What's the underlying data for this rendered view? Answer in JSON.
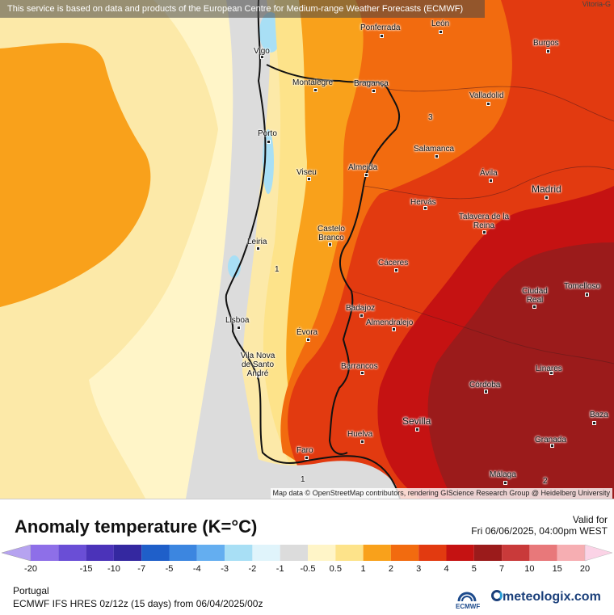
{
  "map": {
    "banner": "This service is based on data and products of the European Centre for Medium-range Weather Forecasts (ECMWF)",
    "attribution": "Map data © OpenStreetMap contributors, rendering GIScience Research Group @ Heidelberg University",
    "corner_label": "Vitoria-G",
    "contour_labels": [
      "1",
      "1",
      "3",
      "2"
    ],
    "cities": [
      "Ponferrada",
      "León",
      "Burgos",
      "Vigo",
      "Montalegre",
      "Bragança",
      "Valladolid",
      "Porto",
      "Salamanca",
      "Viseu",
      "Almeida",
      "Ávila",
      "Madrid",
      "Hervás",
      "Talavera de la Reina",
      "Leiria",
      "Castelo Branco",
      "Cáceres",
      "Ciudad Real",
      "Tomelloso",
      "Badajoz",
      "Almendralejo",
      "Lisboa",
      "Évora",
      "Vila Nova de Santo André",
      "Barrancos",
      "Linares",
      "Córdoba",
      "Sevilla",
      "Baza",
      "Huelva",
      "Granada",
      "Faro",
      "Málaga"
    ]
  },
  "legend": {
    "title": "Anomaly temperature (K=°C)",
    "valid_label": "Valid for",
    "valid_time": "Fri 06/06/2025, 04:00pm WEST",
    "region": "Portugal",
    "model": "ECMWF IFS HRES 0z/12z (15 days) from 06/04/2025/00z",
    "brand_small": "ECMWF",
    "brand": "meteologix.com",
    "ticks": [
      "-20",
      "-15",
      "-10",
      "-7",
      "-5",
      "-4",
      "-3",
      "-2",
      "-1",
      "-0.5",
      "0.5",
      "1",
      "2",
      "3",
      "4",
      "5",
      "7",
      "10",
      "15",
      "20"
    ],
    "colors": [
      "#b6a3f0",
      "#8e6fe8",
      "#6a4ed6",
      "#4b33b9",
      "#3428a0",
      "#1f5fc9",
      "#3c86e0",
      "#64aef0",
      "#a8dff5",
      "#e0f4fb",
      "#dcdcdc",
      "#fff5c8",
      "#fde38a",
      "#f9a11b",
      "#f26b0f",
      "#e23a10",
      "#c51212",
      "#9b1b1b",
      "#c93a3a",
      "#e8787a",
      "#f6aeb2",
      "#fbd3e6"
    ]
  }
}
